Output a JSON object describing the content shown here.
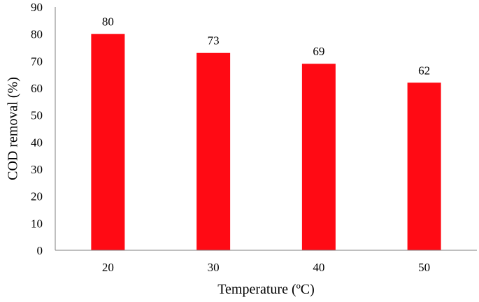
{
  "chart_data": {
    "type": "bar",
    "title": "",
    "xlabel": "Temperature (ºC)",
    "ylabel": "COD removal (%)",
    "categories": [
      "20",
      "30",
      "40",
      "50"
    ],
    "values": [
      80,
      73,
      69,
      62
    ],
    "data_labels": [
      "80",
      "73",
      "69",
      "62"
    ],
    "ylim": [
      0,
      90
    ],
    "yticks": [
      "0",
      "10",
      "20",
      "30",
      "40",
      "50",
      "60",
      "70",
      "80",
      "90"
    ],
    "grid": false,
    "legend": "none",
    "bar_color": "#ff0a14"
  }
}
